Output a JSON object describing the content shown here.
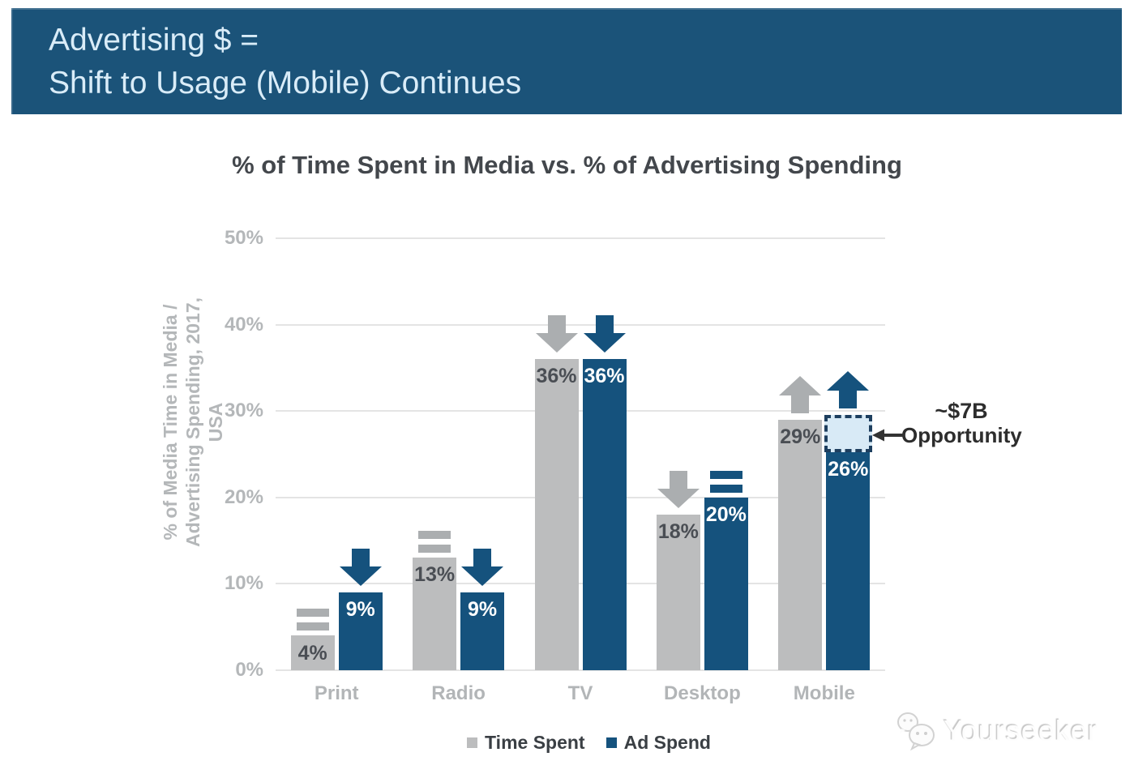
{
  "banner": {
    "line1": "Advertising $ =",
    "line2": "Shift to Usage (Mobile) Continues"
  },
  "chart_data": {
    "type": "bar",
    "title": "% of Time Spent in Media vs. % of Advertising Spending",
    "ylabel_lines": [
      "% of Media Time in Media /",
      "Advertising Spending, 2017, USA"
    ],
    "categories": [
      "Print",
      "Radio",
      "TV",
      "Desktop",
      "Mobile"
    ],
    "series": [
      {
        "name": "Time Spent",
        "color": "#bcbdbe",
        "label_color": "#4a4e54",
        "trend_color": "#abaeb0",
        "values": [
          4,
          13,
          36,
          18,
          29
        ],
        "labels": [
          "4%",
          "13%",
          "36%",
          "18%",
          "29%"
        ],
        "trends": [
          "flat",
          "flat",
          "down",
          "down",
          "up"
        ]
      },
      {
        "name": "Ad Spend",
        "color": "#15527d",
        "label_color": "#ffffff",
        "trend_color": "#15527d",
        "values": [
          9,
          9,
          36,
          20,
          26
        ],
        "labels": [
          "9%",
          "9%",
          "36%",
          "20%",
          "26%"
        ],
        "trends": [
          "down",
          "down",
          "down",
          "flat",
          "up"
        ]
      }
    ],
    "yticks": [
      "0%",
      "10%",
      "20%",
      "30%",
      "40%",
      "50%"
    ],
    "ylim": [
      0,
      50
    ],
    "grid": true,
    "legend_position": "bottom"
  },
  "opportunity": {
    "category_index": 4,
    "series_index": 1,
    "from_value": 26,
    "to_value": 29,
    "line1": "~$7B",
    "line2": "Opportunity",
    "fill": "#d8eaf6",
    "border": "#1e3f5f"
  },
  "watermark": {
    "text": "Yourseeker"
  },
  "colors": {
    "banner_bg": "#1b5379",
    "banner_text": "#d9ecf8",
    "title_text": "#43474c",
    "axis_text": "#b4b7b9",
    "grid_line": "#e4e4e4",
    "legend_text": "#3a3f44",
    "annotation_text": "#2d2d2d",
    "annotation_arrow": "#333333"
  }
}
